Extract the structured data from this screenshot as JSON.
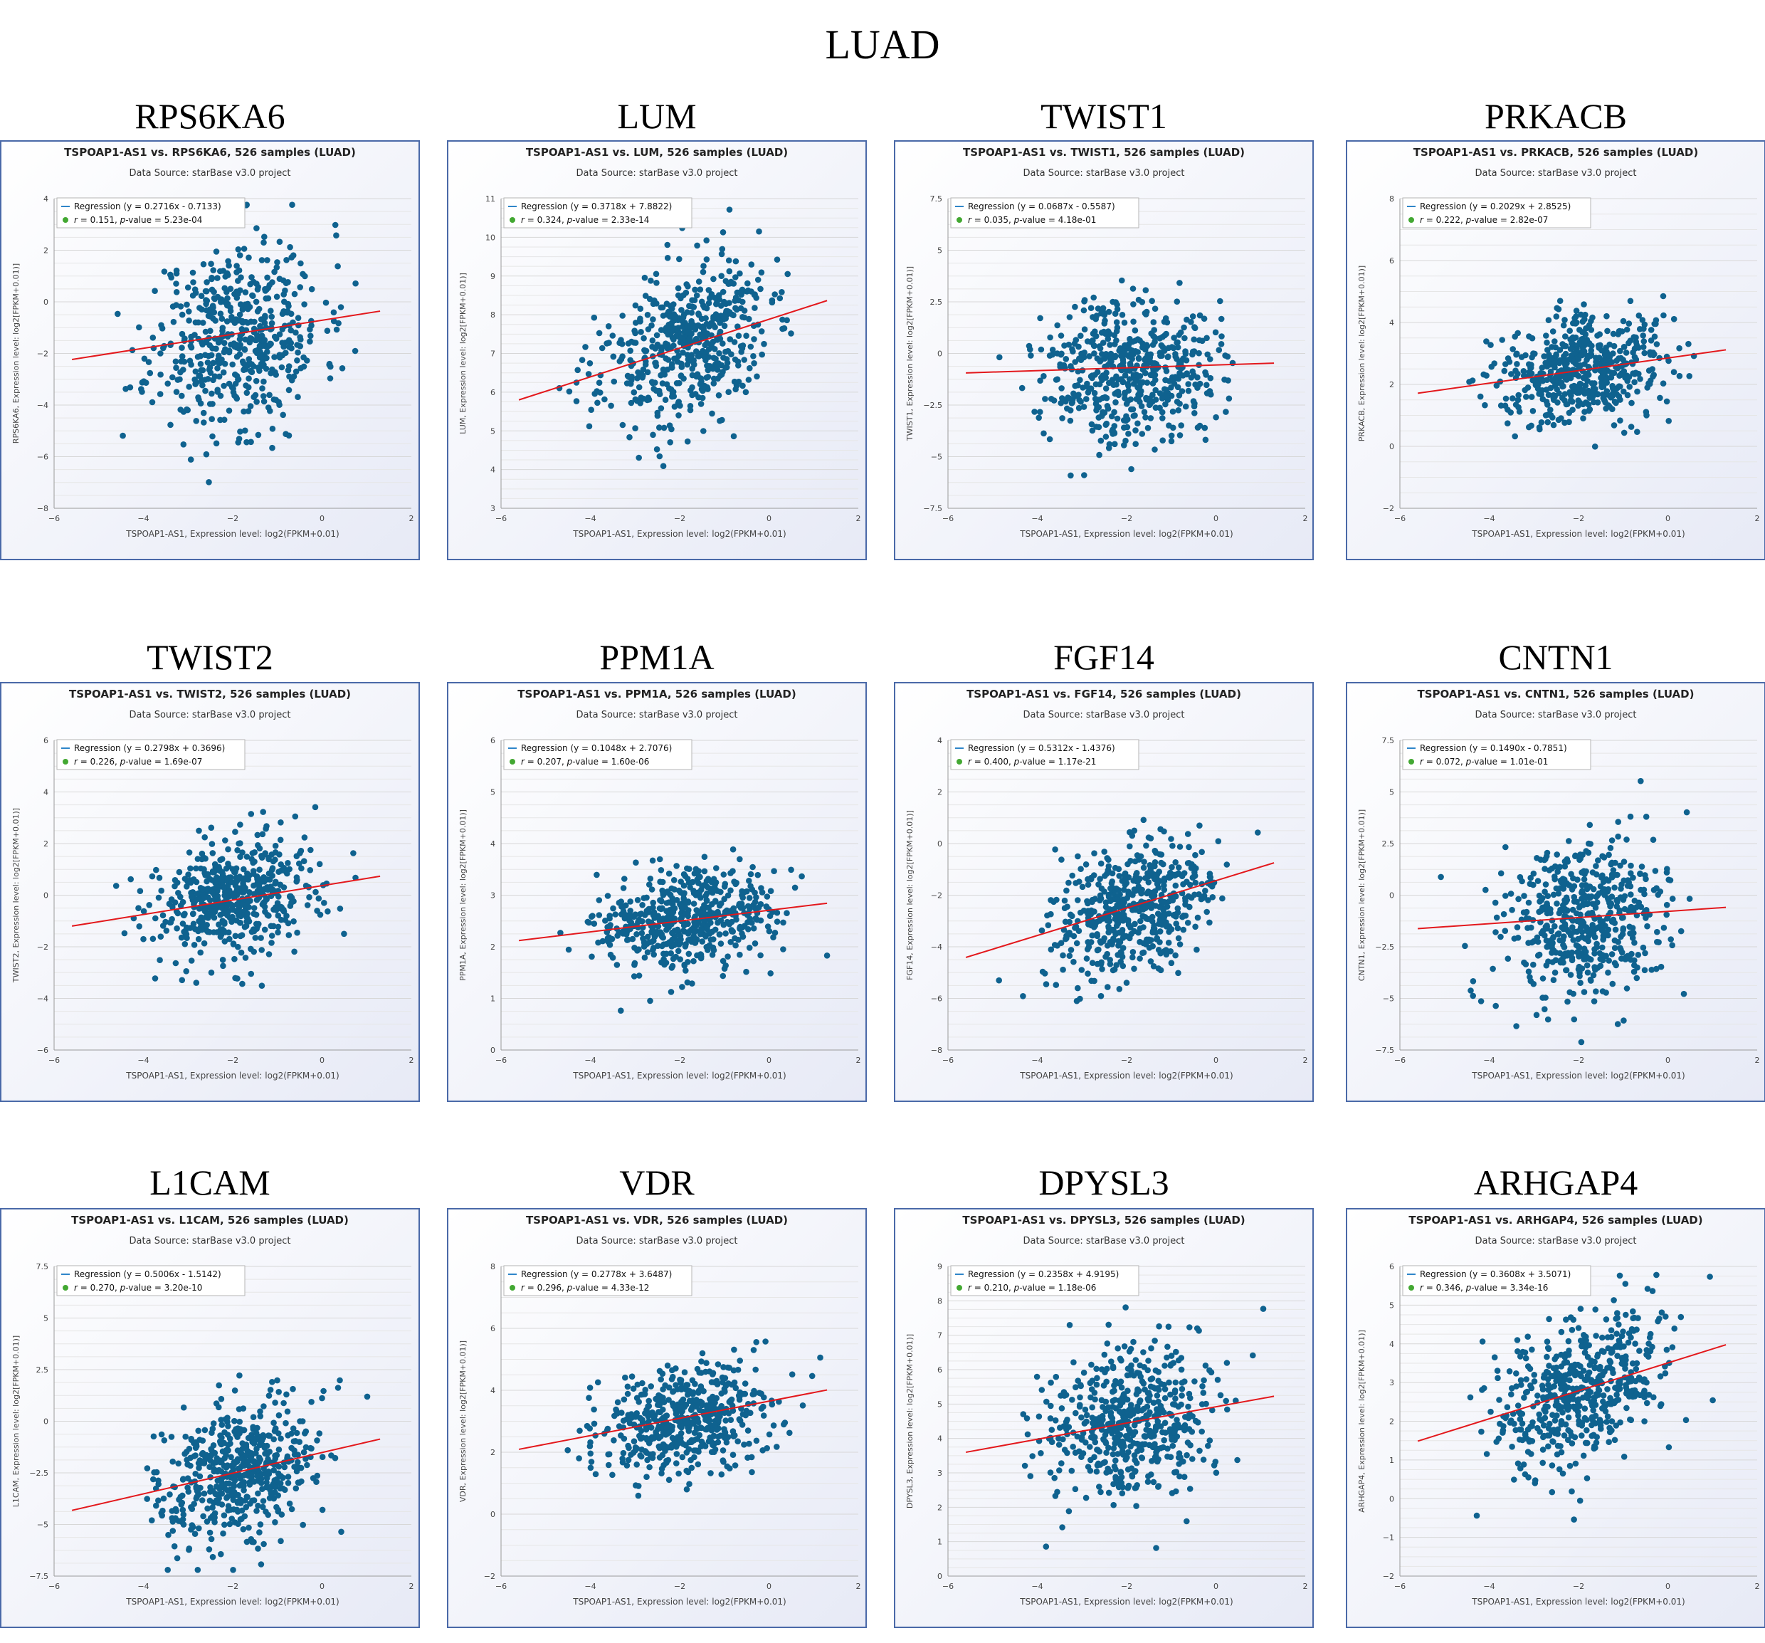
{
  "title": "LUAD",
  "colors": {
    "points": "#0f628f",
    "regression": "#e3181c",
    "frame": "#4a69a8",
    "legend_line": "#2f86c9",
    "legend_dot": "#43a832",
    "grid": "#d7d7d7"
  },
  "common": {
    "source": "Data Source: starBase v3.0 project",
    "xlabel": "TSPOAP1-AS1, Expression level: log2(FPKM+0.01)",
    "xlim": [
      -6,
      2
    ],
    "xticks": [
      -6,
      -4,
      -2,
      0,
      2
    ],
    "n_points": 526,
    "x_mean": -1.9,
    "x_sd": 0.95
  },
  "chart_data": [
    {
      "type": "scatter",
      "gene": "RPS6KA6",
      "title": "TSPOAP1-AS1 vs. RPS6KA6, 526 samples (LUAD)",
      "ylabel": "RPS6KA6, Expression level: log2[FPKM+0.01)]",
      "ylim": [
        -8,
        4
      ],
      "yticks": [
        -8,
        -6,
        -4,
        -2,
        0,
        2,
        4
      ],
      "slope": 0.2716,
      "intercept": -0.7133,
      "regression_label": "Regression (y = 0.2716x - 0.7133)",
      "r_value": "0.151",
      "p_value": "5.23e-04",
      "y_mean": -1.3,
      "y_sd": 1.85,
      "seed": 11
    },
    {
      "type": "scatter",
      "gene": "LUM",
      "title": "TSPOAP1-AS1 vs. LUM, 526 samples (LUAD)",
      "ylabel": "LUM, Expression level: log2[FPKM+0.01)]",
      "ylim": [
        3,
        11
      ],
      "yticks": [
        3,
        4,
        5,
        6,
        7,
        8,
        9,
        10,
        11
      ],
      "slope": 0.3718,
      "intercept": 7.8822,
      "regression_label": "Regression (y = 0.3718x + 7.8822)",
      "r_value": "0.324",
      "p_value": "2.33e-14",
      "y_mean": 7.2,
      "y_sd": 1.05,
      "seed": 23
    },
    {
      "type": "scatter",
      "gene": "TWIST1",
      "title": "TSPOAP1-AS1 vs. TWIST1, 526 samples (LUAD)",
      "ylabel": "TWIST1, Expression level: log2[FPKM+0.01)]",
      "ylim": [
        -7.5,
        7.5
      ],
      "yticks": [
        -7.5,
        -5,
        -2.5,
        0,
        2.5,
        5,
        7.5
      ],
      "slope": 0.0687,
      "intercept": -0.5587,
      "regression_label": "Regression (y = 0.0687x - 0.5587)",
      "r_value": "0.035",
      "p_value": "4.18e-01",
      "y_mean": -0.7,
      "y_sd": 1.75,
      "seed": 37
    },
    {
      "type": "scatter",
      "gene": "PRKACB",
      "title": "TSPOAP1-AS1 vs. PRKACB, 526 samples (LUAD)",
      "ylabel": "PRKACB, Expression level: log2[FPKM+0.01)]",
      "ylim": [
        -2,
        8
      ],
      "yticks": [
        -2,
        0,
        2,
        4,
        6,
        8
      ],
      "slope": 0.2029,
      "intercept": 2.8525,
      "regression_label": "Regression (y = 0.2029x + 2.8525)",
      "r_value": "0.222",
      "p_value": "2.82e-07",
      "y_mean": 2.45,
      "y_sd": 0.9,
      "seed": 41
    },
    {
      "type": "scatter",
      "gene": "TWIST2",
      "title": "TSPOAP1-AS1 vs. TWIST2, 526 samples (LUAD)",
      "ylabel": "TWIST2, Expression level: log2[FPKM+0.01)]",
      "ylim": [
        -6,
        6
      ],
      "yticks": [
        -6,
        -4,
        -2,
        0,
        2,
        4,
        6
      ],
      "slope": 0.2798,
      "intercept": 0.3696,
      "regression_label": "Regression (y = 0.2798x + 0.3696)",
      "r_value": "0.226",
      "p_value": "1.69e-07",
      "y_mean": -0.15,
      "y_sd": 1.2,
      "seed": 53
    },
    {
      "type": "scatter",
      "gene": "PPM1A",
      "title": "TSPOAP1-AS1 vs. PPM1A, 526 samples (LUAD)",
      "ylabel": "PPM1A, Expression level: log2[FPKM+0.01)]",
      "ylim": [
        0,
        6
      ],
      "yticks": [
        0,
        1,
        2,
        3,
        4,
        5,
        6
      ],
      "slope": 0.1048,
      "intercept": 2.7076,
      "regression_label": "Regression (y = 0.1048x + 2.7076)",
      "r_value": "0.207",
      "p_value": "1.60e-06",
      "y_mean": 2.5,
      "y_sd": 0.48,
      "seed": 67
    },
    {
      "type": "scatter",
      "gene": "FGF14",
      "title": "TSPOAP1-AS1 vs. FGF14, 526 samples (LUAD)",
      "ylabel": "FGF14, Expression level: log2[FPKM+0.01)]",
      "ylim": [
        -8,
        4
      ],
      "yticks": [
        -8,
        -6,
        -4,
        -2,
        0,
        2,
        4
      ],
      "slope": 0.5312,
      "intercept": -1.4376,
      "regression_label": "Regression (y = 0.5312x - 1.4376)",
      "r_value": "0.400",
      "p_value": "1.17e-21",
      "y_mean": -2.45,
      "y_sd": 1.3,
      "seed": 79
    },
    {
      "type": "scatter",
      "gene": "CNTN1",
      "title": "TSPOAP1-AS1 vs. CNTN1, 526 samples (LUAD)",
      "ylabel": "CNTN1, Expression level: log2[FPKM+0.01)]",
      "ylim": [
        -7.5,
        7.5
      ],
      "yticks": [
        -7.5,
        -5,
        -2.5,
        0,
        2.5,
        5,
        7.5
      ],
      "slope": 0.149,
      "intercept": -0.7851,
      "regression_label": "Regression (y = 0.1490x - 0.7851)",
      "r_value": "0.072",
      "p_value": "1.01e-01",
      "y_mean": -1.1,
      "y_sd": 1.9,
      "seed": 83
    },
    {
      "type": "scatter",
      "gene": "L1CAM",
      "title": "TSPOAP1-AS1 vs. L1CAM, 526 samples (LUAD)",
      "ylabel": "L1CAM, Expression level: log2[FPKM+0.01)]",
      "ylim": [
        -7.5,
        7.5
      ],
      "yticks": [
        -7.5,
        -5,
        -2.5,
        0,
        2.5,
        5,
        7.5
      ],
      "slope": 0.5006,
      "intercept": -1.5142,
      "regression_label": "Regression (y = 0.5006x - 1.5142)",
      "r_value": "0.270",
      "p_value": "3.20e-10",
      "y_mean": -2.5,
      "y_sd": 1.75,
      "seed": 97
    },
    {
      "type": "scatter",
      "gene": "VDR",
      "title": "TSPOAP1-AS1 vs. VDR, 526 samples (LUAD)",
      "ylabel": "VDR, Expression level: log2[FPKM+0.01)]",
      "ylim": [
        -2,
        8
      ],
      "yticks": [
        -2,
        0,
        2,
        4,
        6,
        8
      ],
      "slope": 0.2778,
      "intercept": 3.6487,
      "regression_label": "Regression (y = 0.2778x + 3.6487)",
      "r_value": "0.296",
      "p_value": "4.33e-12",
      "y_mean": 3.1,
      "y_sd": 0.9,
      "seed": 101
    },
    {
      "type": "scatter",
      "gene": "DPYSL3",
      "title": "TSPOAP1-AS1 vs. DPYSL3, 526 samples (LUAD)",
      "ylabel": "DPYSL3, Expression level: log2[FPKM+0.01)]",
      "ylim": [
        0,
        9
      ],
      "yticks": [
        0,
        1,
        2,
        3,
        4,
        5,
        6,
        7,
        8,
        9
      ],
      "slope": 0.2358,
      "intercept": 4.9195,
      "regression_label": "Regression (y = 0.2358x + 4.9195)",
      "r_value": "0.210",
      "p_value": "1.18e-06",
      "y_mean": 4.45,
      "y_sd": 1.1,
      "seed": 113
    },
    {
      "type": "scatter",
      "gene": "ARHGAP4",
      "title": "TSPOAP1-AS1 vs. ARHGAP4, 526 samples (LUAD)",
      "ylabel": "ARHGAP4, Expression level: log2[FPKM+0.01)]",
      "ylim": [
        -2,
        6
      ],
      "yticks": [
        -2,
        -1,
        0,
        1,
        2,
        3,
        4,
        5,
        6
      ],
      "slope": 0.3608,
      "intercept": 3.5071,
      "regression_label": "Regression (y = 0.3608x + 3.5071)",
      "r_value": "0.346",
      "p_value": "3.34e-16",
      "y_mean": 2.8,
      "y_sd": 1.0,
      "seed": 127
    }
  ]
}
